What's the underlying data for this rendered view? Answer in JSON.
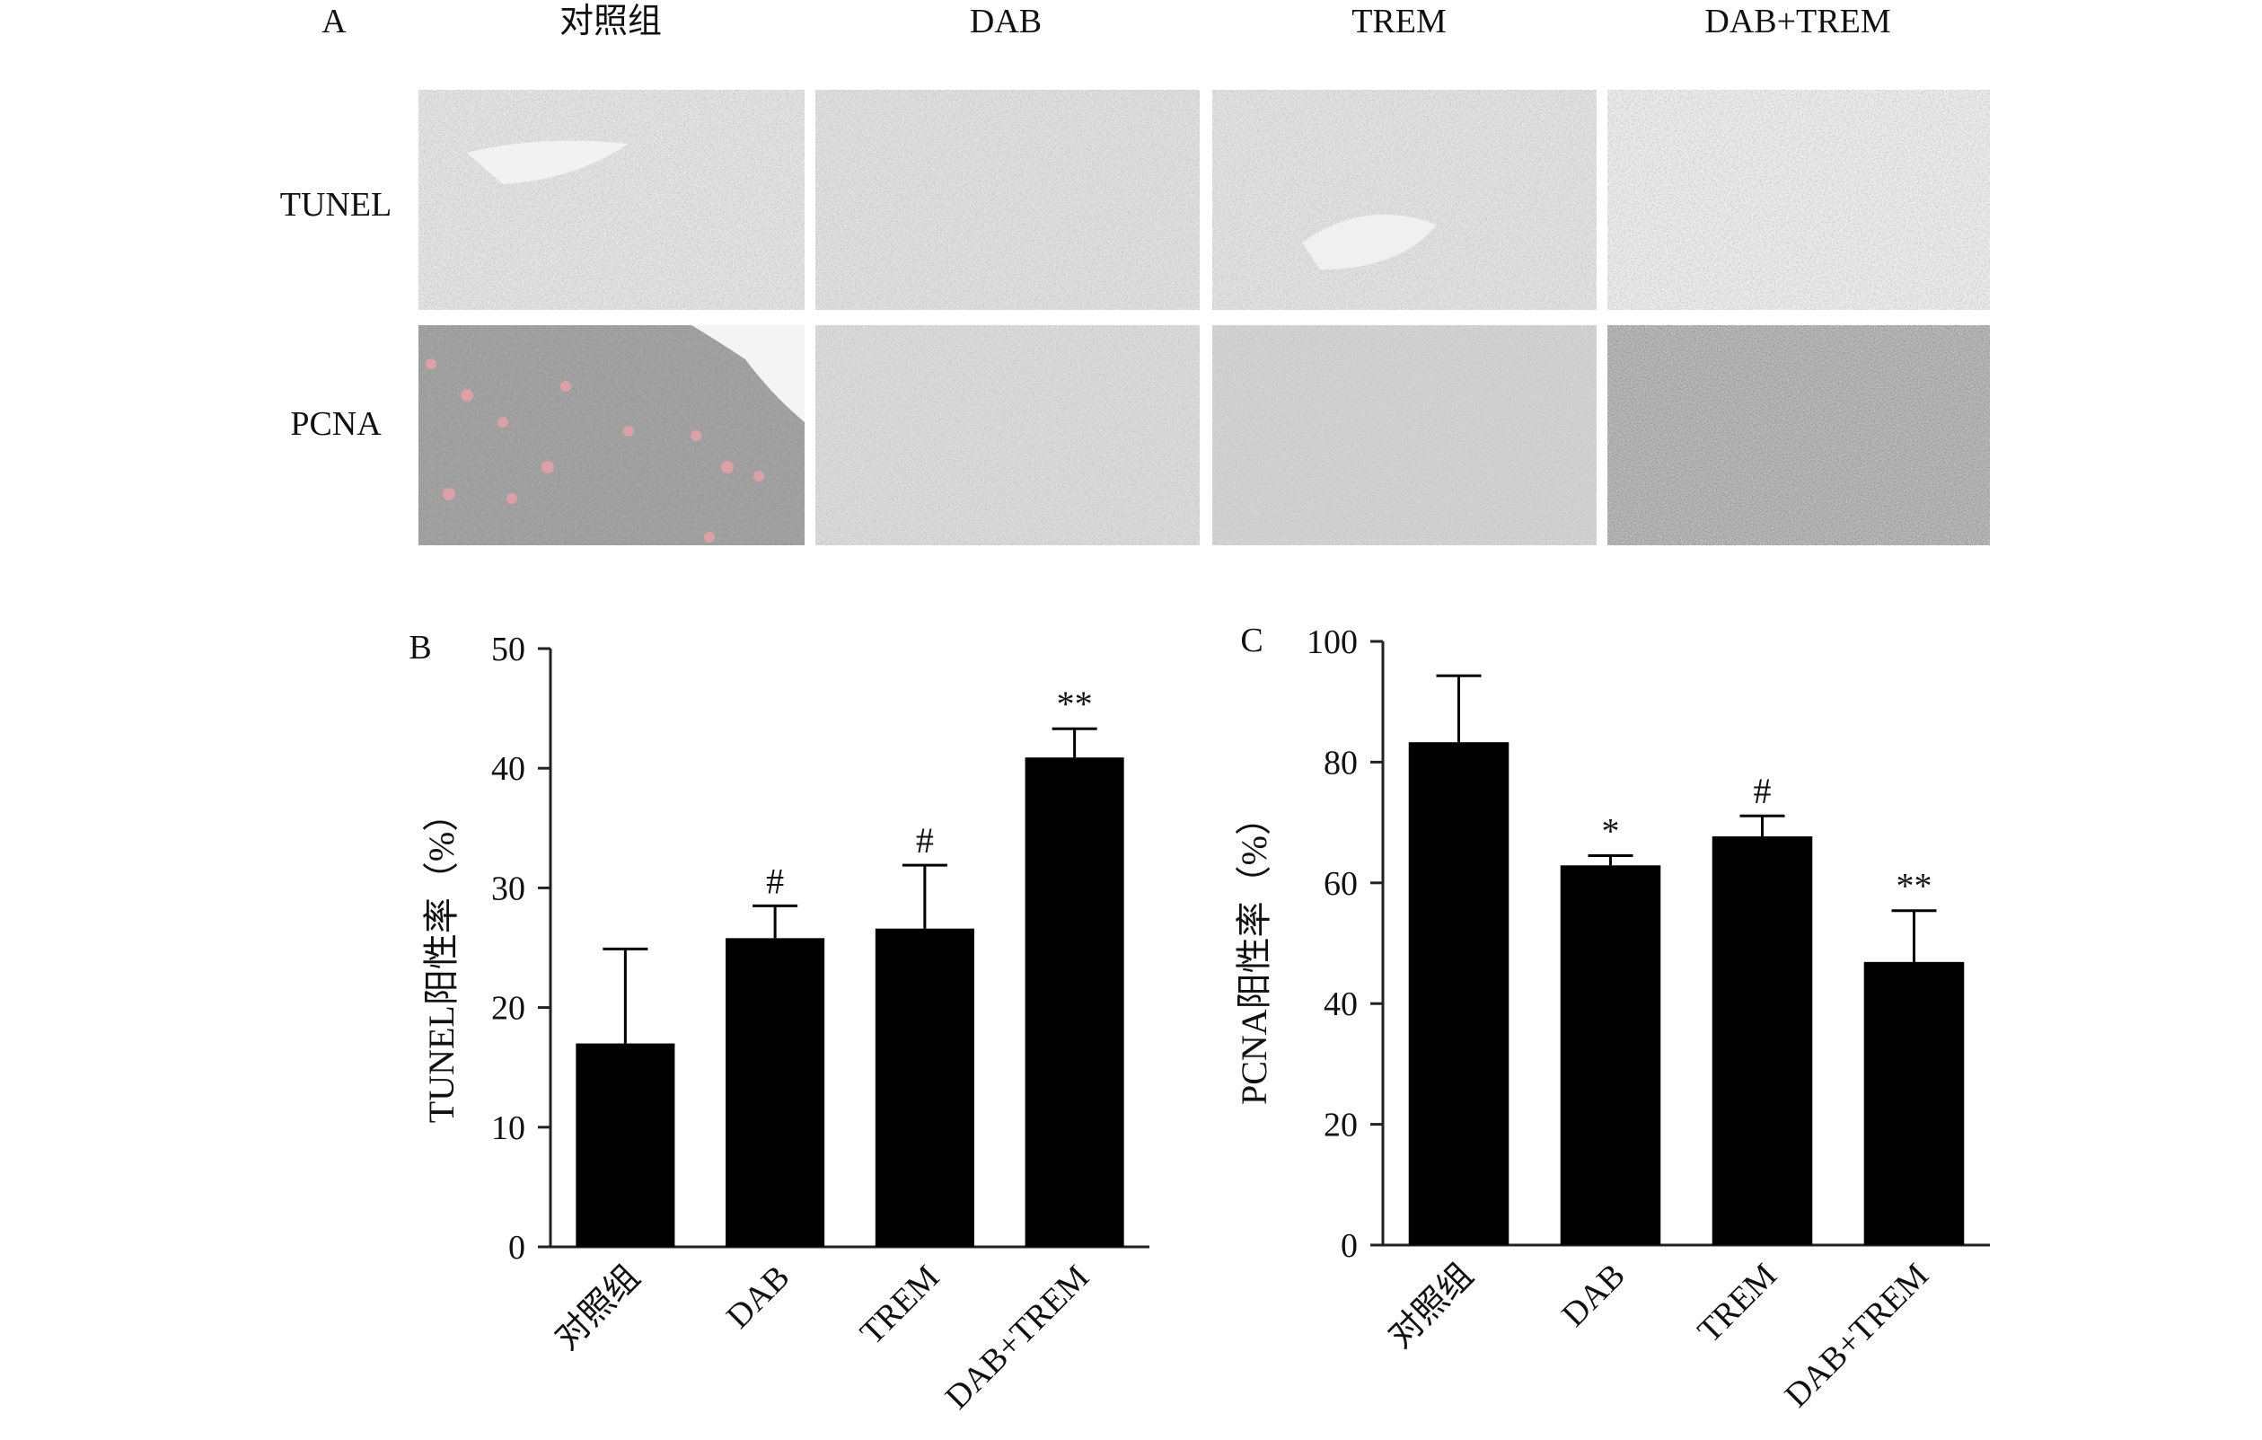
{
  "panel_a": {
    "letter": "A",
    "columns": [
      "对照组",
      "DAB",
      "TREM",
      "DAB+TREM"
    ],
    "rows": [
      "TUNEL",
      "PCNA"
    ]
  },
  "chart_data": [
    {
      "type": "bar",
      "panel": "B",
      "categories": [
        "对照组",
        "DAB",
        "TREM",
        "DAB+TREM"
      ],
      "values": [
        17,
        25.8,
        26.6,
        40.9
      ],
      "errors": [
        7.9,
        2.7,
        5.3,
        2.4
      ],
      "annotations": [
        "",
        "#",
        "#",
        "**"
      ],
      "ylabel": "TUNEL阳性率（%）",
      "ylim": [
        0,
        50
      ],
      "yticks": [
        0,
        10,
        20,
        30,
        40,
        50
      ],
      "grid": false,
      "bar_color": "#000000"
    },
    {
      "type": "bar",
      "panel": "C",
      "categories": [
        "对照组",
        "DAB",
        "TREM",
        "DAB+TREM"
      ],
      "values": [
        83.3,
        62.9,
        67.7,
        46.9
      ],
      "errors": [
        11,
        1.6,
        3.4,
        8.5
      ],
      "annotations": [
        "",
        "*",
        "#",
        "**"
      ],
      "ylabel": "PCNA阳性率（%）",
      "ylim": [
        0,
        100
      ],
      "yticks": [
        0,
        20,
        40,
        60,
        80,
        100
      ],
      "grid": false,
      "bar_color": "#000000"
    }
  ]
}
